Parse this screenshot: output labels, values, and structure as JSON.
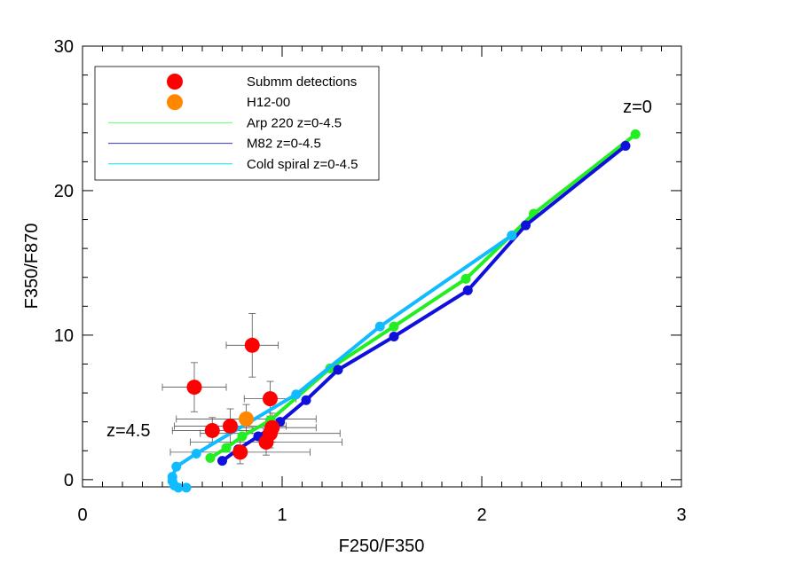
{
  "chart_data": {
    "type": "scatter",
    "xlabel": "F250/F350",
    "ylabel": "F350/F870",
    "xlim": [
      0,
      3
    ],
    "ylim": [
      -0.5,
      30
    ],
    "xticks": [
      0,
      1,
      2,
      3
    ],
    "yticks": [
      0,
      10,
      20,
      30
    ],
    "grid": false,
    "legend_position": "top-left",
    "annotations": [
      {
        "text": "z=0",
        "x": 2.78,
        "y": 25.4
      },
      {
        "text": "z=4.5",
        "x": 0.23,
        "y": 3.0
      }
    ],
    "series": [
      {
        "name": "Submm detections",
        "kind": "points",
        "color": "#ff0000",
        "points": [
          {
            "x": 0.56,
            "y": 6.4,
            "xerr": 0.16,
            "yerr": 1.7
          },
          {
            "x": 0.85,
            "y": 9.3,
            "xerr": 0.13,
            "yerr": 2.2
          },
          {
            "x": 0.94,
            "y": 5.6,
            "xerr": 0.13,
            "yerr": 1.2
          },
          {
            "x": 0.65,
            "y": 3.4,
            "xerr": 0.2,
            "yerr": 0.9
          },
          {
            "x": 0.74,
            "y": 3.7,
            "xerr": 0.28,
            "yerr": 1.2
          },
          {
            "x": 0.95,
            "y": 3.6,
            "xerr": 0.22,
            "yerr": 1.0
          },
          {
            "x": 0.94,
            "y": 3.2,
            "xerr": 0.35,
            "yerr": 1.0
          },
          {
            "x": 0.92,
            "y": 2.6,
            "xerr": 0.38,
            "yerr": 0.9
          },
          {
            "x": 0.79,
            "y": 1.9,
            "xerr": 0.35,
            "yerr": 0.8
          }
        ]
      },
      {
        "name": "H12-00",
        "kind": "points",
        "color": "#ff8800",
        "points": [
          {
            "x": 0.82,
            "y": 4.2,
            "xerr": 0.35,
            "yerr": 1.0
          }
        ]
      },
      {
        "name": "Arp 220 z=0-4.5",
        "kind": "line",
        "color": "#22ee22",
        "legend_color": "#66ff66",
        "points": [
          [
            2.77,
            23.9
          ],
          [
            2.26,
            18.4
          ],
          [
            1.92,
            13.9
          ],
          [
            1.56,
            10.6
          ],
          [
            1.24,
            7.7
          ],
          [
            0.94,
            4.1
          ],
          [
            0.8,
            3.0
          ],
          [
            0.72,
            2.2
          ],
          [
            0.64,
            1.5
          ]
        ]
      },
      {
        "name": "M82 z=0-4.5",
        "kind": "line",
        "color": "#1010dd",
        "legend_color": "#3333cc",
        "points": [
          [
            2.72,
            23.1
          ],
          [
            2.22,
            17.6
          ],
          [
            1.93,
            13.1
          ],
          [
            1.56,
            9.9
          ],
          [
            1.28,
            7.6
          ],
          [
            1.12,
            5.5
          ],
          [
            0.99,
            4.0
          ],
          [
            0.88,
            3.0
          ],
          [
            0.78,
            2.1
          ],
          [
            0.7,
            1.3
          ]
        ]
      },
      {
        "name": "Cold spiral z=0-4.5",
        "kind": "line",
        "color": "#11bbff",
        "legend_color": "#11ddee",
        "points": [
          [
            2.15,
            16.9
          ],
          [
            1.49,
            10.6
          ],
          [
            1.07,
            5.9
          ],
          [
            0.57,
            1.8
          ],
          [
            0.47,
            0.9
          ],
          [
            0.45,
            0.2
          ],
          [
            0.45,
            -0.1
          ],
          [
            0.46,
            -0.4
          ],
          [
            0.48,
            -0.55
          ],
          [
            0.52,
            -0.55
          ]
        ]
      }
    ]
  }
}
